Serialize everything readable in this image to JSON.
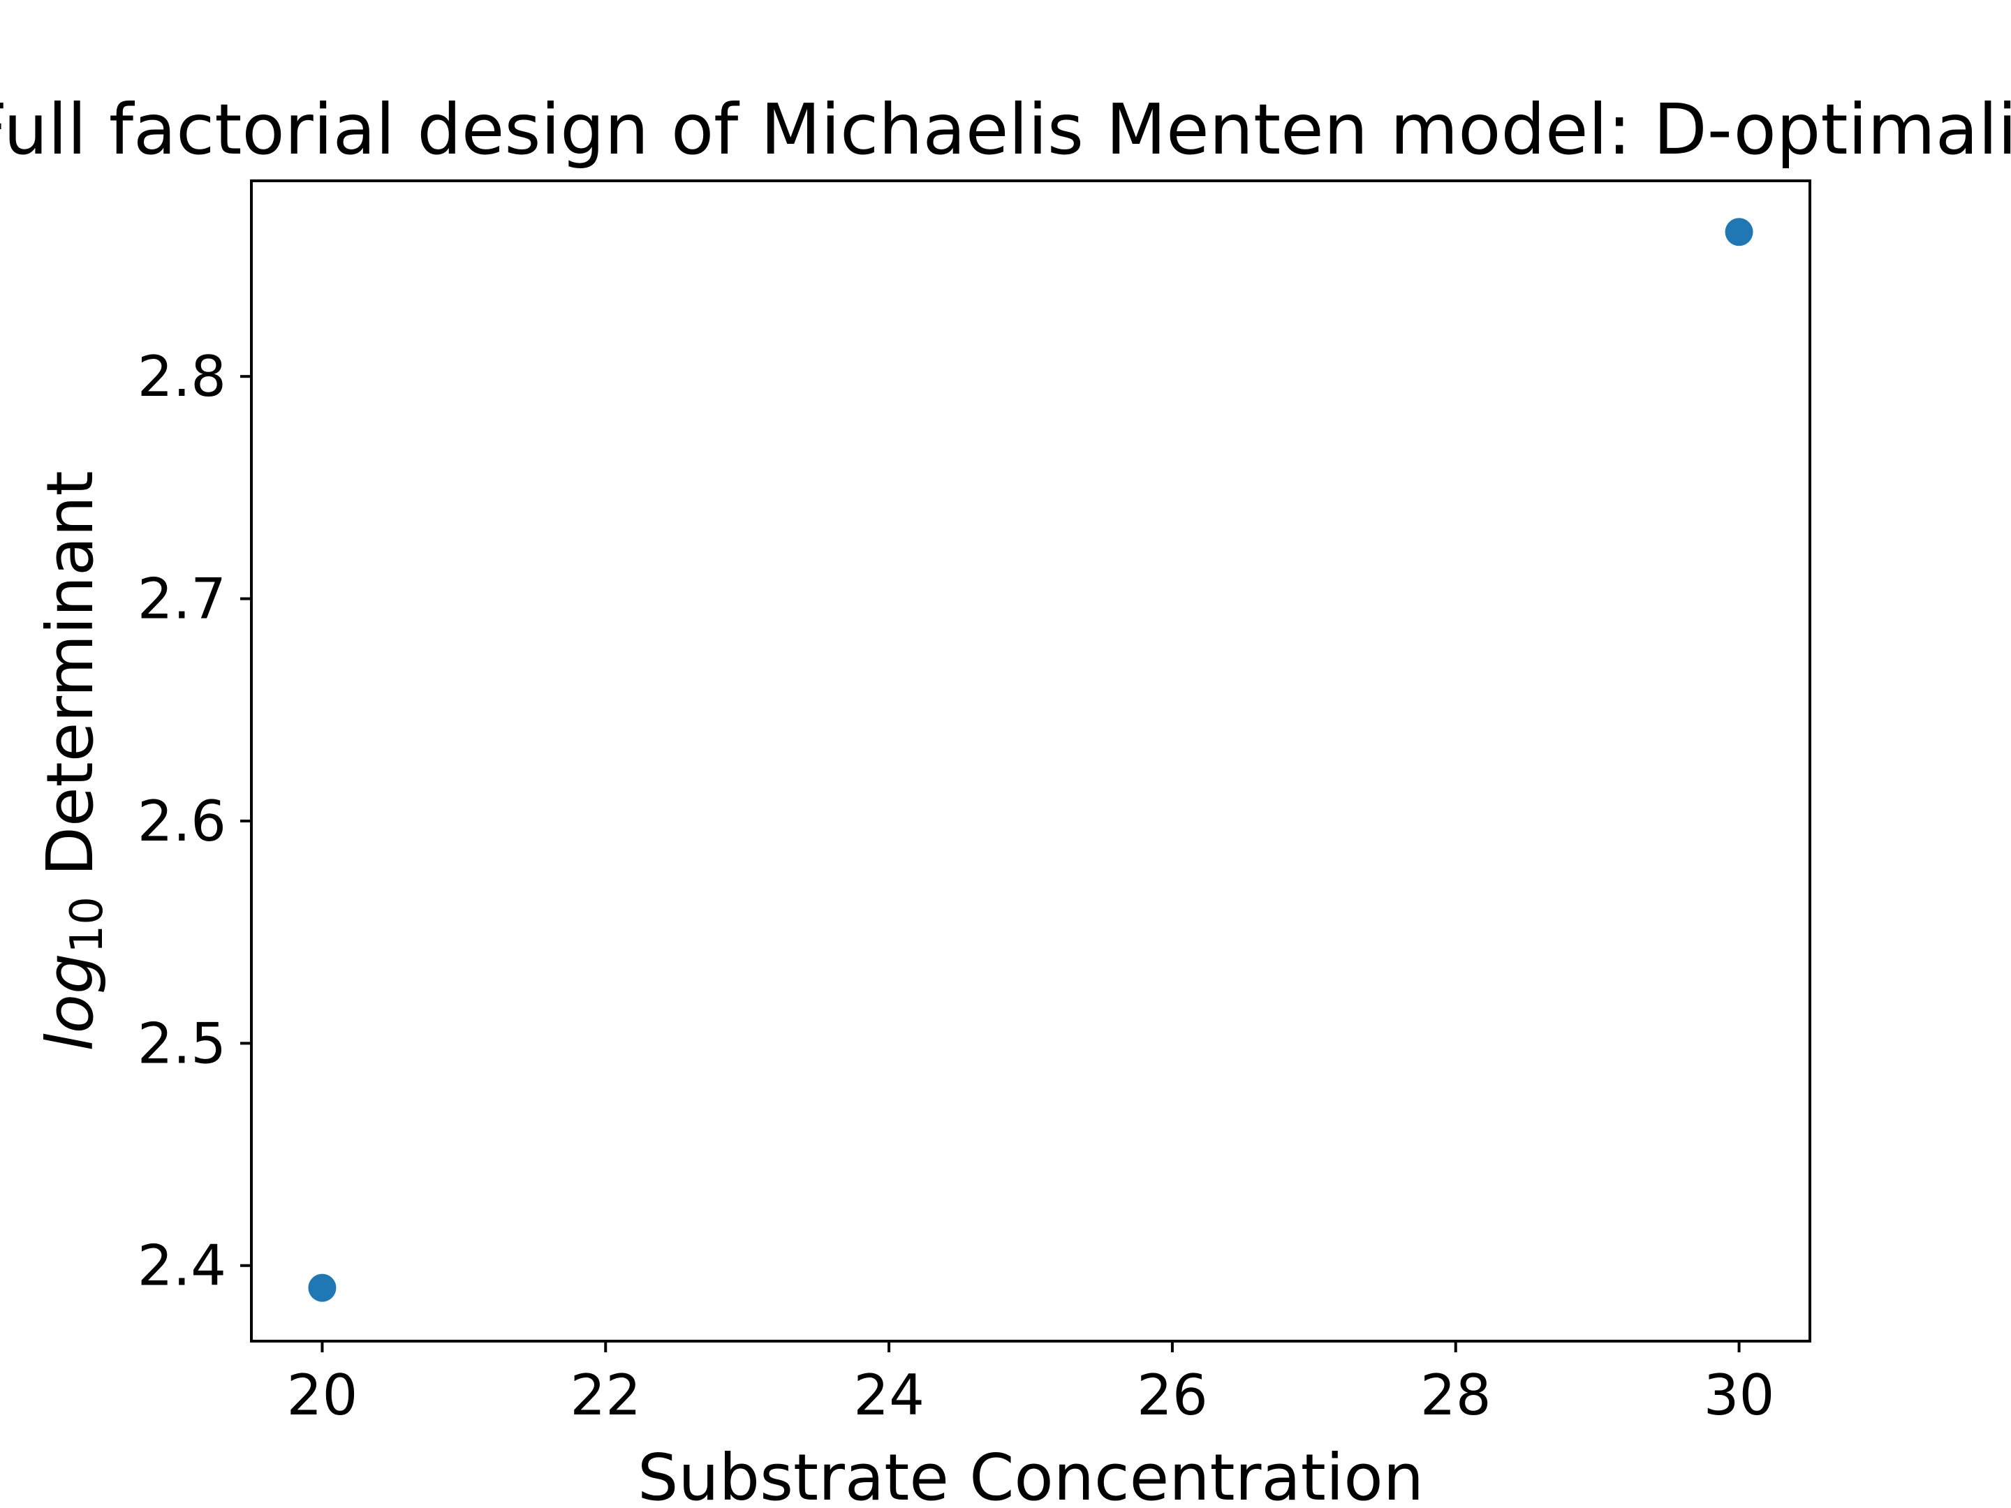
{
  "chart_data": {
    "type": "scatter",
    "title": "Full factorial design of Michaelis Menten model: D-optimality",
    "xlabel": "Substrate Concentration",
    "ylabel": {
      "prefix": "log",
      "subscript": "10",
      "suffix": " Determinant"
    },
    "xlim": [
      19.5,
      30.5
    ],
    "ylim": [
      2.366,
      2.888
    ],
    "xticks": [
      20,
      22,
      24,
      26,
      28,
      30
    ],
    "yticks": [
      2.4,
      2.5,
      2.6,
      2.7,
      2.8
    ],
    "xtick_labels": [
      "20",
      "22",
      "24",
      "26",
      "28",
      "30"
    ],
    "ytick_labels": [
      "2.4",
      "2.5",
      "2.6",
      "2.7",
      "2.8"
    ],
    "points": [
      {
        "x": 20,
        "y": 2.39
      },
      {
        "x": 30,
        "y": 2.865
      }
    ],
    "marker_color": "#1f77b4",
    "grid": false,
    "legend": false
  }
}
